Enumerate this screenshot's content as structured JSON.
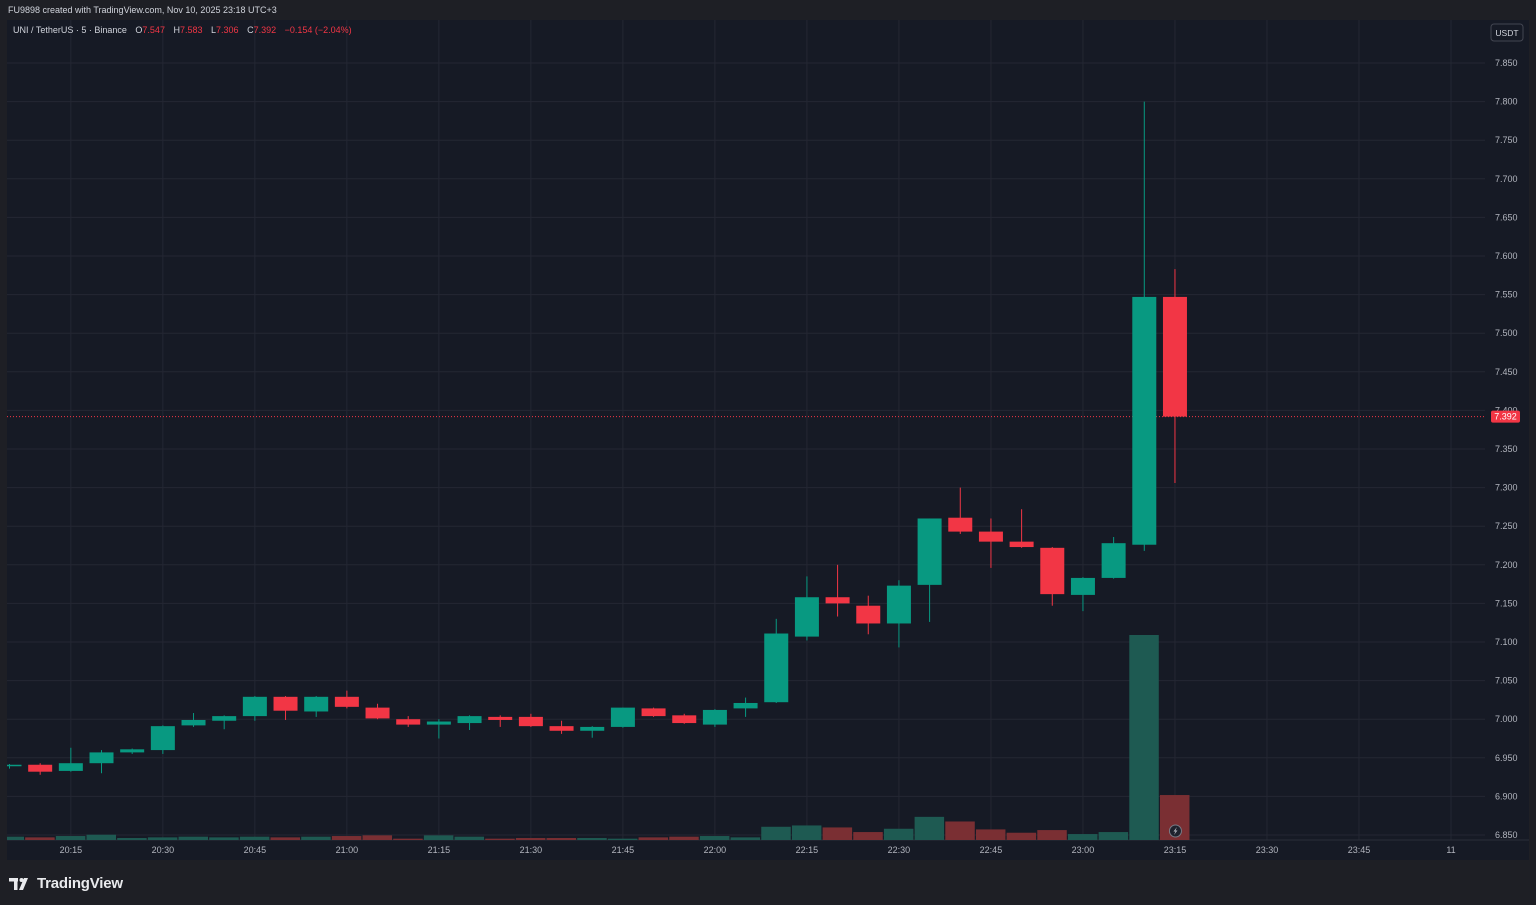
{
  "header": {
    "credit": "FU9898 created with TradingView.com, Nov 10, 2025 23:18 UTC+3"
  },
  "legend": {
    "symbol": "UNI / TetherUS · 5 · Binance",
    "open_label": "O",
    "open": "7.547",
    "high_label": "H",
    "high": "7.583",
    "low_label": "L",
    "low": "7.306",
    "close_label": "C",
    "close": "7.392",
    "change": "−0.154 (−2.04%)"
  },
  "footer": {
    "brand": "TradingView"
  },
  "colors": {
    "background": "#161a25",
    "grid": "#242733",
    "up": "#089981",
    "down": "#f23645",
    "volume_up": "#1e5a52",
    "volume_down": "#7a2f33",
    "text": "#b2b5be"
  },
  "chart_data": {
    "type": "candlestick",
    "currency": "USDT",
    "last_price": "7.392",
    "y_ticks": [
      "6.850",
      "6.900",
      "6.950",
      "7.000",
      "7.050",
      "7.100",
      "7.150",
      "7.200",
      "7.250",
      "7.300",
      "7.350",
      "7.400",
      "7.450",
      "7.500",
      "7.550",
      "7.600",
      "7.650",
      "7.700",
      "7.750",
      "7.800",
      "7.850"
    ],
    "x_ticks": [
      "20:15",
      "20:30",
      "20:45",
      "21:00",
      "21:15",
      "21:30",
      "21:45",
      "22:00",
      "22:15",
      "22:30",
      "22:45",
      "23:00",
      "23:15",
      "23:30",
      "23:45",
      "11"
    ],
    "volume_icon": "lightning-icon",
    "candles": [
      {
        "t": "20:00",
        "o": 6.94,
        "h": 6.942,
        "l": 6.936,
        "c": 6.941
      },
      {
        "t": "20:05",
        "o": 6.941,
        "h": 6.943,
        "l": 6.928,
        "c": 6.932
      },
      {
        "t": "20:10",
        "o": 6.933,
        "h": 6.963,
        "l": 6.932,
        "c": 6.943
      },
      {
        "t": "20:15",
        "o": 6.943,
        "h": 6.96,
        "l": 6.93,
        "c": 6.957
      },
      {
        "t": "20:20",
        "o": 6.957,
        "h": 6.962,
        "l": 6.955,
        "c": 6.961
      },
      {
        "t": "20:25",
        "o": 6.96,
        "h": 6.992,
        "l": 6.955,
        "c": 6.991
      },
      {
        "t": "20:30",
        "o": 6.992,
        "h": 7.008,
        "l": 6.99,
        "c": 6.999
      },
      {
        "t": "20:35",
        "o": 6.998,
        "h": 7.005,
        "l": 6.987,
        "c": 7.004
      },
      {
        "t": "20:40",
        "o": 7.004,
        "h": 7.03,
        "l": 6.998,
        "c": 7.029
      },
      {
        "t": "20:45",
        "o": 7.029,
        "h": 7.03,
        "l": 6.999,
        "c": 7.011
      },
      {
        "t": "20:50",
        "o": 7.01,
        "h": 7.03,
        "l": 7.003,
        "c": 7.029
      },
      {
        "t": "20:55",
        "o": 7.029,
        "h": 7.037,
        "l": 7.014,
        "c": 7.016
      },
      {
        "t": "21:00",
        "o": 7.015,
        "h": 7.02,
        "l": 7.0,
        "c": 7.001
      },
      {
        "t": "21:05",
        "o": 7.0,
        "h": 7.004,
        "l": 6.99,
        "c": 6.993
      },
      {
        "t": "21:10",
        "o": 6.993,
        "h": 7.0,
        "l": 6.975,
        "c": 6.997
      },
      {
        "t": "21:15",
        "o": 6.995,
        "h": 7.005,
        "l": 6.986,
        "c": 7.004
      },
      {
        "t": "21:20",
        "o": 7.003,
        "h": 7.005,
        "l": 6.99,
        "c": 6.999
      },
      {
        "t": "21:25",
        "o": 7.003,
        "h": 7.007,
        "l": 6.99,
        "c": 6.991
      },
      {
        "t": "21:30",
        "o": 6.991,
        "h": 6.998,
        "l": 6.981,
        "c": 6.985
      },
      {
        "t": "21:35",
        "o": 6.985,
        "h": 6.991,
        "l": 6.976,
        "c": 6.99
      },
      {
        "t": "21:40",
        "o": 6.99,
        "h": 7.015,
        "l": 6.989,
        "c": 7.015
      },
      {
        "t": "21:45",
        "o": 7.014,
        "h": 7.015,
        "l": 7.003,
        "c": 7.004
      },
      {
        "t": "21:50",
        "o": 7.005,
        "h": 7.007,
        "l": 6.994,
        "c": 6.995
      },
      {
        "t": "21:55",
        "o": 6.993,
        "h": 7.013,
        "l": 6.99,
        "c": 7.012
      },
      {
        "t": "22:00",
        "o": 7.014,
        "h": 7.028,
        "l": 7.003,
        "c": 7.021
      },
      {
        "t": "22:05",
        "o": 7.022,
        "h": 7.13,
        "l": 7.021,
        "c": 7.111
      },
      {
        "t": "22:10",
        "o": 7.107,
        "h": 7.185,
        "l": 7.102,
        "c": 7.158
      },
      {
        "t": "22:15",
        "o": 7.158,
        "h": 7.2,
        "l": 7.133,
        "c": 7.15
      },
      {
        "t": "22:20",
        "o": 7.147,
        "h": 7.16,
        "l": 7.11,
        "c": 7.124
      },
      {
        "t": "22:25",
        "o": 7.124,
        "h": 7.18,
        "l": 7.093,
        "c": 7.173
      },
      {
        "t": "22:30",
        "o": 7.174,
        "h": 7.26,
        "l": 7.126,
        "c": 7.26
      },
      {
        "t": "22:35",
        "o": 7.261,
        "h": 7.3,
        "l": 7.24,
        "c": 7.243
      },
      {
        "t": "22:40",
        "o": 7.243,
        "h": 7.26,
        "l": 7.196,
        "c": 7.23
      },
      {
        "t": "22:45",
        "o": 7.23,
        "h": 7.272,
        "l": 7.222,
        "c": 7.223
      },
      {
        "t": "22:50",
        "o": 7.222,
        "h": 7.223,
        "l": 7.147,
        "c": 7.162
      },
      {
        "t": "22:55",
        "o": 7.161,
        "h": 7.184,
        "l": 7.14,
        "c": 7.183
      },
      {
        "t": "23:00",
        "o": 7.183,
        "h": 7.236,
        "l": 7.182,
        "c": 7.228
      },
      {
        "t": "23:05",
        "o": 7.226,
        "h": 7.8,
        "l": 7.218,
        "c": 7.547
      },
      {
        "t": "23:10",
        "o": 7.547,
        "h": 7.583,
        "l": 7.306,
        "c": 7.392
      }
    ],
    "volume": [
      5,
      4,
      6,
      8,
      3,
      4,
      5,
      4,
      5,
      4,
      5,
      6,
      7,
      2,
      7,
      5,
      2,
      3,
      3,
      3,
      2,
      4,
      5,
      6,
      4,
      20,
      22,
      19,
      12,
      17,
      35,
      28,
      16,
      11,
      15,
      9,
      12,
      310,
      68
    ]
  }
}
